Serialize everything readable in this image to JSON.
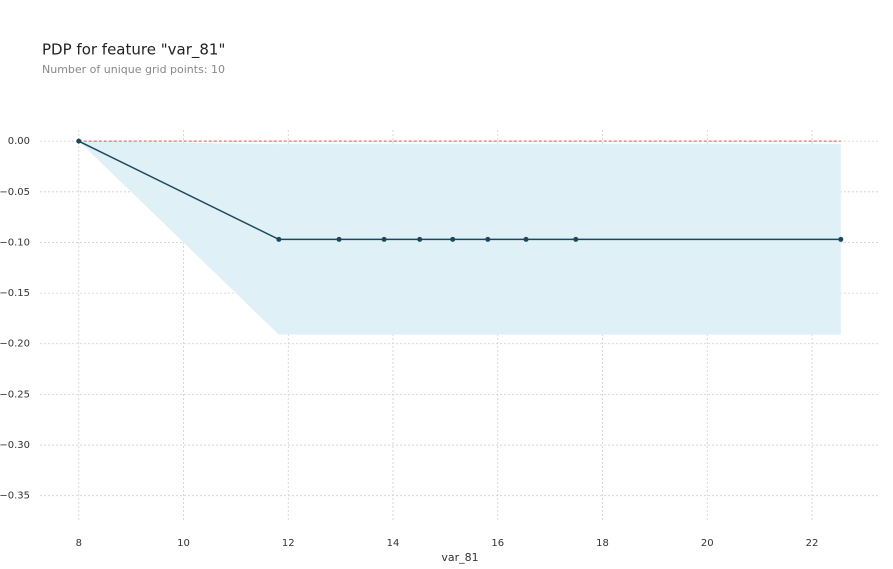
{
  "chart_data": {
    "type": "line",
    "title": "PDP for feature \"var_81\"",
    "subtitle": "Number of unique grid points: 10",
    "xlabel": "var_81",
    "x": [
      8.0,
      11.82,
      12.97,
      13.83,
      14.51,
      15.14,
      15.81,
      16.54,
      17.49,
      22.55
    ],
    "values": [
      0,
      -0.097,
      -0.097,
      -0.097,
      -0.097,
      -0.097,
      -0.097,
      -0.097,
      -0.097,
      -0.097
    ],
    "upper": [
      0,
      -0.003,
      -0.003,
      -0.003,
      -0.003,
      -0.003,
      -0.003,
      -0.003,
      -0.003,
      -0.003
    ],
    "lower": [
      0,
      -0.191,
      -0.191,
      -0.191,
      -0.191,
      -0.191,
      -0.191,
      -0.191,
      -0.191,
      -0.191
    ],
    "color": "#1a4a5a",
    "band_color": "#dff0f6",
    "reference_color": "#d9534f",
    "xlim": [
      7.26,
      23.26
    ],
    "ylim": [
      -0.374,
      0.011
    ],
    "xticks": [
      8,
      10,
      12,
      14,
      16,
      18,
      20,
      22
    ],
    "yticks": [
      {
        "value": 0,
        "label": "0.00"
      },
      {
        "value": -0.05,
        "label": "−0.05"
      },
      {
        "value": -0.1,
        "label": "−0.10"
      },
      {
        "value": -0.15,
        "label": "−0.15"
      },
      {
        "value": -0.2,
        "label": "−0.20"
      },
      {
        "value": -0.25,
        "label": "−0.25"
      },
      {
        "value": -0.3,
        "label": "−0.30"
      },
      {
        "value": -0.35,
        "label": "−0.35"
      }
    ],
    "grid": true
  }
}
